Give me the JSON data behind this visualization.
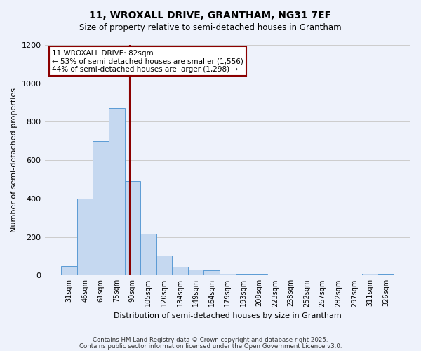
{
  "title1": "11, WROXALL DRIVE, GRANTHAM, NG31 7EF",
  "title2": "Size of property relative to semi-detached houses in Grantham",
  "xlabel": "Distribution of semi-detached houses by size in Grantham",
  "ylabel": "Number of semi-detached properties",
  "bar_values": [
    50,
    400,
    700,
    870,
    490,
    215,
    105,
    45,
    30,
    28,
    10,
    5,
    3,
    2,
    1,
    1,
    1,
    0,
    0,
    10,
    5
  ],
  "bin_labels": [
    "31sqm",
    "46sqm",
    "61sqm",
    "75sqm",
    "90sqm",
    "105sqm",
    "120sqm",
    "134sqm",
    "149sqm",
    "164sqm",
    "179sqm",
    "193sqm",
    "208sqm",
    "223sqm",
    "238sqm",
    "252sqm",
    "267sqm",
    "282sqm",
    "297sqm",
    "311sqm",
    "326sqm"
  ],
  "bar_color": "#c5d8f0",
  "bar_edge_color": "#5b9bd5",
  "vline_x": 3.85,
  "vline_color": "#8b0000",
  "annotation_title": "11 WROXALL DRIVE: 82sqm",
  "annotation_line1": "← 53% of semi-detached houses are smaller (1,556)",
  "annotation_line2": "44% of semi-detached houses are larger (1,298) →",
  "annotation_box_color": "#8b0000",
  "ylim": [
    0,
    1200
  ],
  "yticks": [
    0,
    200,
    400,
    600,
    800,
    1000,
    1200
  ],
  "footer1": "Contains HM Land Registry data © Crown copyright and database right 2025.",
  "footer2": "Contains public sector information licensed under the Open Government Licence v3.0.",
  "background_color": "#eef2fb"
}
